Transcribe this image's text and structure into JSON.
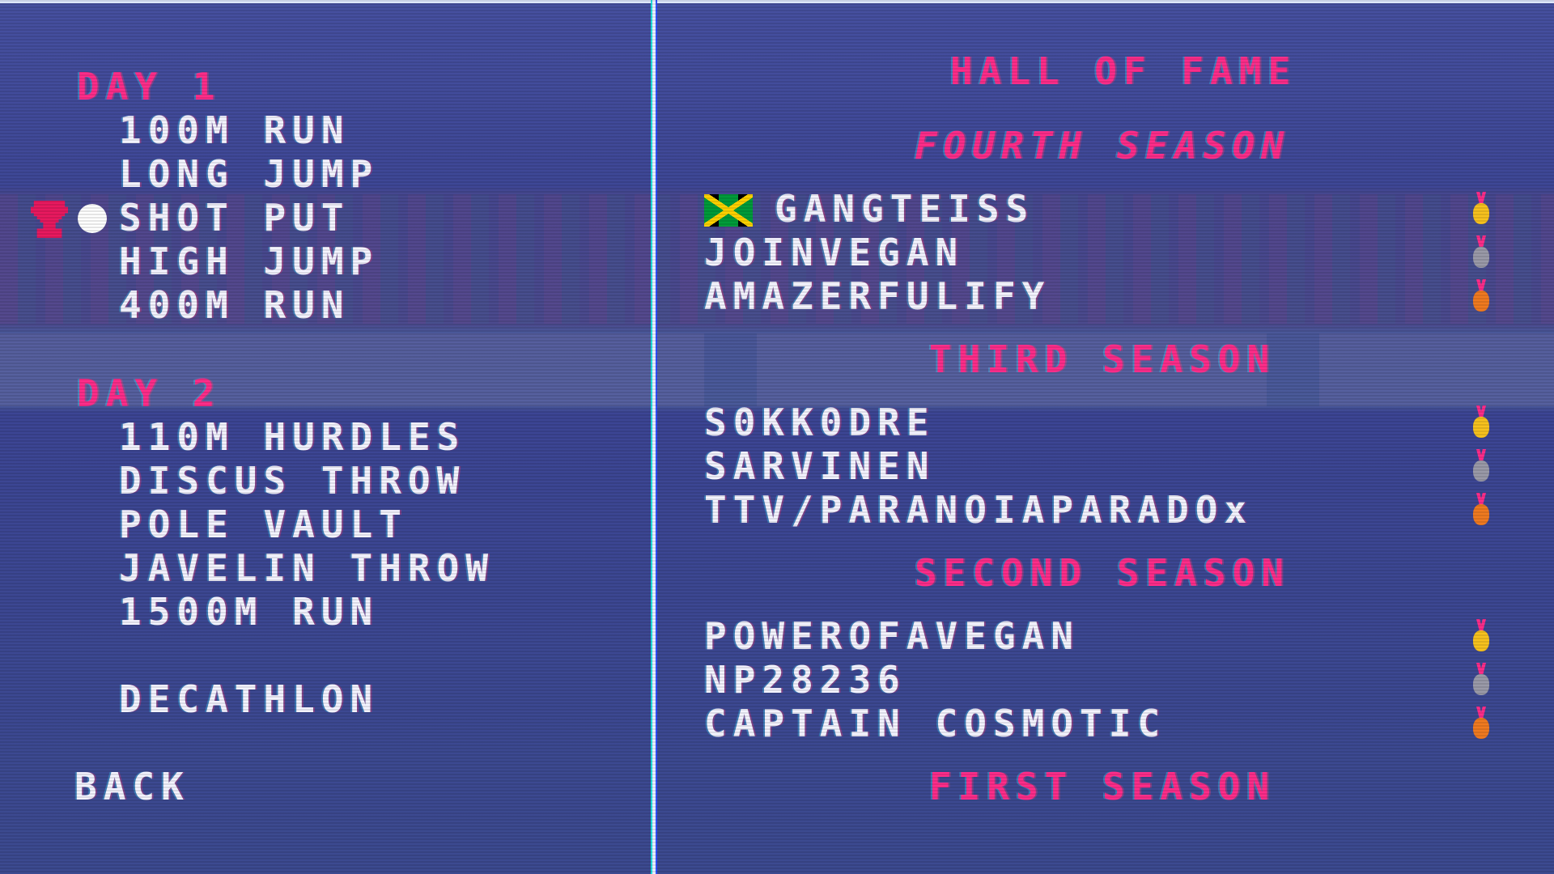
{
  "left_menu": {
    "day1_label": "DAY 1",
    "day1_events": [
      "100M RUN",
      "LONG JUMP",
      "SHOT PUT",
      "HIGH JUMP",
      "400M RUN"
    ],
    "day2_label": "DAY 2",
    "day2_events": [
      "110M HURDLES",
      "DISCUS THROW",
      "POLE VAULT",
      "JAVELIN THROW",
      "1500M RUN"
    ],
    "decathlon": "DECATHLON",
    "back": "BACK",
    "selected": "SHOT PUT"
  },
  "hall_of_fame": {
    "title": "HALL OF FAME",
    "seasons": [
      {
        "label": "FOURTH SEASON",
        "entries": [
          {
            "name": "GANGTEISS",
            "flag": "jamaica",
            "medal": "gold"
          },
          {
            "name": "JOINVEGAN",
            "medal": "silver"
          },
          {
            "name": "AMAZERFULIFY",
            "medal": "bronze"
          }
        ]
      },
      {
        "label": "THIRD SEASON",
        "entries": [
          {
            "name": "S0KK0DRE",
            "medal": "gold"
          },
          {
            "name": "SARVINEN",
            "medal": "silver"
          },
          {
            "name": "TTV/PARANOIAPARADOx",
            "medal": "bronze"
          }
        ]
      },
      {
        "label": "SECOND SEASON",
        "entries": [
          {
            "name": "POWEROFAVEGAN",
            "medal": "gold"
          },
          {
            "name": "NP28236",
            "medal": "silver"
          },
          {
            "name": "CAPTAIN COSMOTIC",
            "medal": "bronze"
          }
        ]
      },
      {
        "label": "FIRST SEASON",
        "entries": []
      }
    ]
  },
  "colors": {
    "accent": "#ff2d8a",
    "text": "#f4f4ff",
    "background": "#3b4290",
    "gold": "#f7c21e",
    "silver": "#9a9aa8",
    "bronze": "#f07a20"
  }
}
